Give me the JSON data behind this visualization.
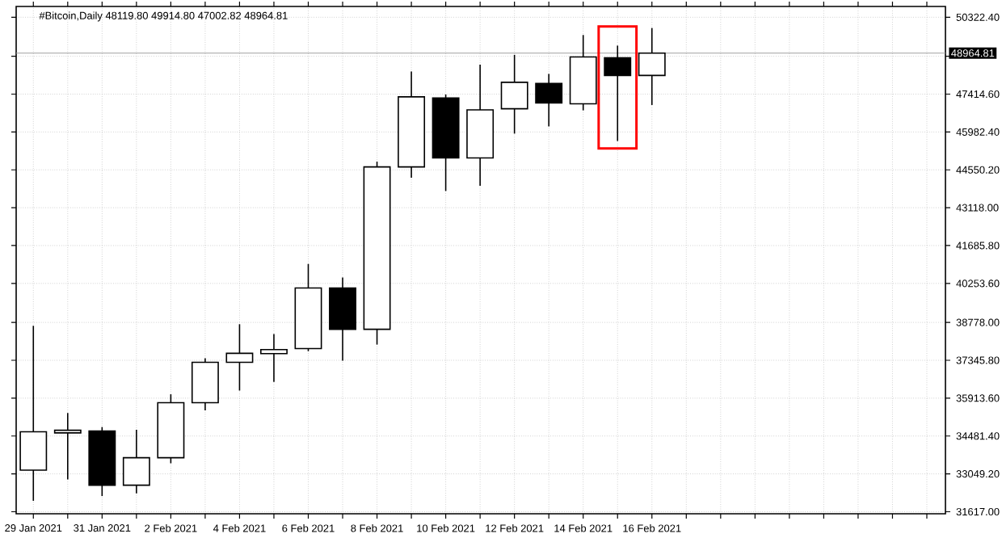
{
  "chart_data": {
    "type": "candlestick",
    "title": "#Bitcoin,Daily  48119.80 49914.80 47002.82 48964.81",
    "x": [
      "2021-01-29",
      "2021-01-30",
      "2021-01-31",
      "2021-02-01",
      "2021-02-02",
      "2021-02-03",
      "2021-02-04",
      "2021-02-05",
      "2021-02-06",
      "2021-02-07",
      "2021-02-08",
      "2021-02-09",
      "2021-02-10",
      "2021-02-11",
      "2021-02-12",
      "2021-02-13",
      "2021-02-14",
      "2021-02-15",
      "2021-02-16"
    ],
    "ohlc": [
      [
        33190,
        38650,
        32030,
        34640
      ],
      [
        34600,
        35350,
        32840,
        34700
      ],
      [
        34670,
        34820,
        32210,
        32620
      ],
      [
        32620,
        34720,
        32310,
        33660
      ],
      [
        33660,
        36060,
        33450,
        35740
      ],
      [
        35740,
        37420,
        35450,
        37270
      ],
      [
        37270,
        38710,
        36200,
        37610
      ],
      [
        37600,
        38340,
        36530,
        37750
      ],
      [
        37790,
        40990,
        37690,
        40080
      ],
      [
        40080,
        40480,
        37330,
        38520
      ],
      [
        38520,
        44860,
        37940,
        44660
      ],
      [
        44660,
        48270,
        44250,
        47310
      ],
      [
        47270,
        47400,
        43750,
        45000
      ],
      [
        45000,
        48530,
        43950,
        46820
      ],
      [
        46860,
        48900,
        45920,
        47860
      ],
      [
        47820,
        48180,
        46190,
        47080
      ],
      [
        47050,
        49650,
        46800,
        48820
      ],
      [
        48790,
        49250,
        45640,
        48120
      ],
      [
        48119.8,
        49914.8,
        47002.82,
        48964.81
      ]
    ],
    "xlim": [
      "2021-01-28T12:00",
      "2021-02-24T13:00"
    ],
    "ylim": [
      31540,
      50730
    ],
    "xticks": [
      {
        "value": "2021-01-29",
        "label": "29 Jan 2021"
      },
      {
        "value": "2021-01-30",
        "label": null
      },
      {
        "value": "2021-01-31",
        "label": "31 Jan 2021"
      },
      {
        "value": "2021-02-01",
        "label": null
      },
      {
        "value": "2021-02-02",
        "label": "2 Feb 2021"
      },
      {
        "value": "2021-02-03",
        "label": null
      },
      {
        "value": "2021-02-04",
        "label": "4 Feb 2021"
      },
      {
        "value": "2021-02-05",
        "label": null
      },
      {
        "value": "2021-02-06",
        "label": "6 Feb 2021"
      },
      {
        "value": "2021-02-07",
        "label": null
      },
      {
        "value": "2021-02-08",
        "label": "8 Feb 2021"
      },
      {
        "value": "2021-02-09",
        "label": null
      },
      {
        "value": "2021-02-10",
        "label": "10 Feb 2021"
      },
      {
        "value": "2021-02-11",
        "label": null
      },
      {
        "value": "2021-02-12",
        "label": "12 Feb 2021"
      },
      {
        "value": "2021-02-13",
        "label": null
      },
      {
        "value": "2021-02-14",
        "label": "14 Feb 2021"
      },
      {
        "value": "2021-02-15",
        "label": null
      },
      {
        "value": "2021-02-16",
        "label": "16 Feb 2021"
      },
      {
        "value": "2021-02-17",
        "label": null
      },
      {
        "value": "2021-02-18",
        "label": null
      },
      {
        "value": "2021-02-19",
        "label": null
      },
      {
        "value": "2021-02-20",
        "label": null
      },
      {
        "value": "2021-02-21",
        "label": null
      },
      {
        "value": "2021-02-22",
        "label": null
      },
      {
        "value": "2021-02-23",
        "label": null
      },
      {
        "value": "2021-02-24",
        "label": null
      }
    ],
    "yticks": [
      {
        "value": 31617,
        "label": "31617.00"
      },
      {
        "value": 33049.2,
        "label": "33049.20"
      },
      {
        "value": 34481.4,
        "label": "34481.40"
      },
      {
        "value": 35913.6,
        "label": "35913.60"
      },
      {
        "value": 37345.8,
        "label": "37345.80"
      },
      {
        "value": 38778,
        "label": "38778.00"
      },
      {
        "value": 40253.6,
        "label": "40253.60"
      },
      {
        "value": 41685.8,
        "label": "41685.80"
      },
      {
        "value": 43118,
        "label": "43118.00"
      },
      {
        "value": 44550.2,
        "label": "44550.20"
      },
      {
        "value": 45982.4,
        "label": "45982.40"
      },
      {
        "value": 47414.6,
        "label": "47414.60"
      },
      {
        "value": 48846.8,
        "label": null
      },
      {
        "value": 50322.4,
        "label": "50322.40"
      }
    ],
    "grid": true,
    "ref_lines": [
      {
        "axis": "y",
        "value": 48964.81,
        "label": "48964.81",
        "color": "#a0a0a0"
      }
    ]
  }
}
